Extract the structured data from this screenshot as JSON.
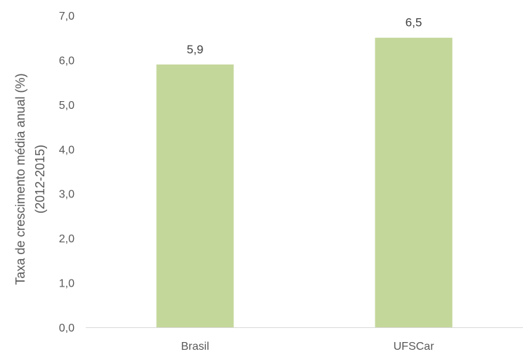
{
  "chart_data": {
    "type": "bar",
    "categories": [
      "Brasil",
      "UFSCar"
    ],
    "values": [
      5.9,
      6.5
    ],
    "data_labels": [
      "5,9",
      "6,5"
    ],
    "ylabel_line1": "Taxa de crescimento média anual (%)",
    "ylabel_line2": "(2012-2015)",
    "ylim": [
      0,
      7
    ],
    "yticks": [
      {
        "value": 0,
        "label": "0,0"
      },
      {
        "value": 1,
        "label": "1,0"
      },
      {
        "value": 2,
        "label": "2,0"
      },
      {
        "value": 3,
        "label": "3,0"
      },
      {
        "value": 4,
        "label": "4,0"
      },
      {
        "value": 5,
        "label": "5,0"
      },
      {
        "value": 6,
        "label": "6,0"
      },
      {
        "value": 7,
        "label": "7,0"
      }
    ],
    "grid": false,
    "legend": "none",
    "bar_color": "#c4d79b"
  }
}
